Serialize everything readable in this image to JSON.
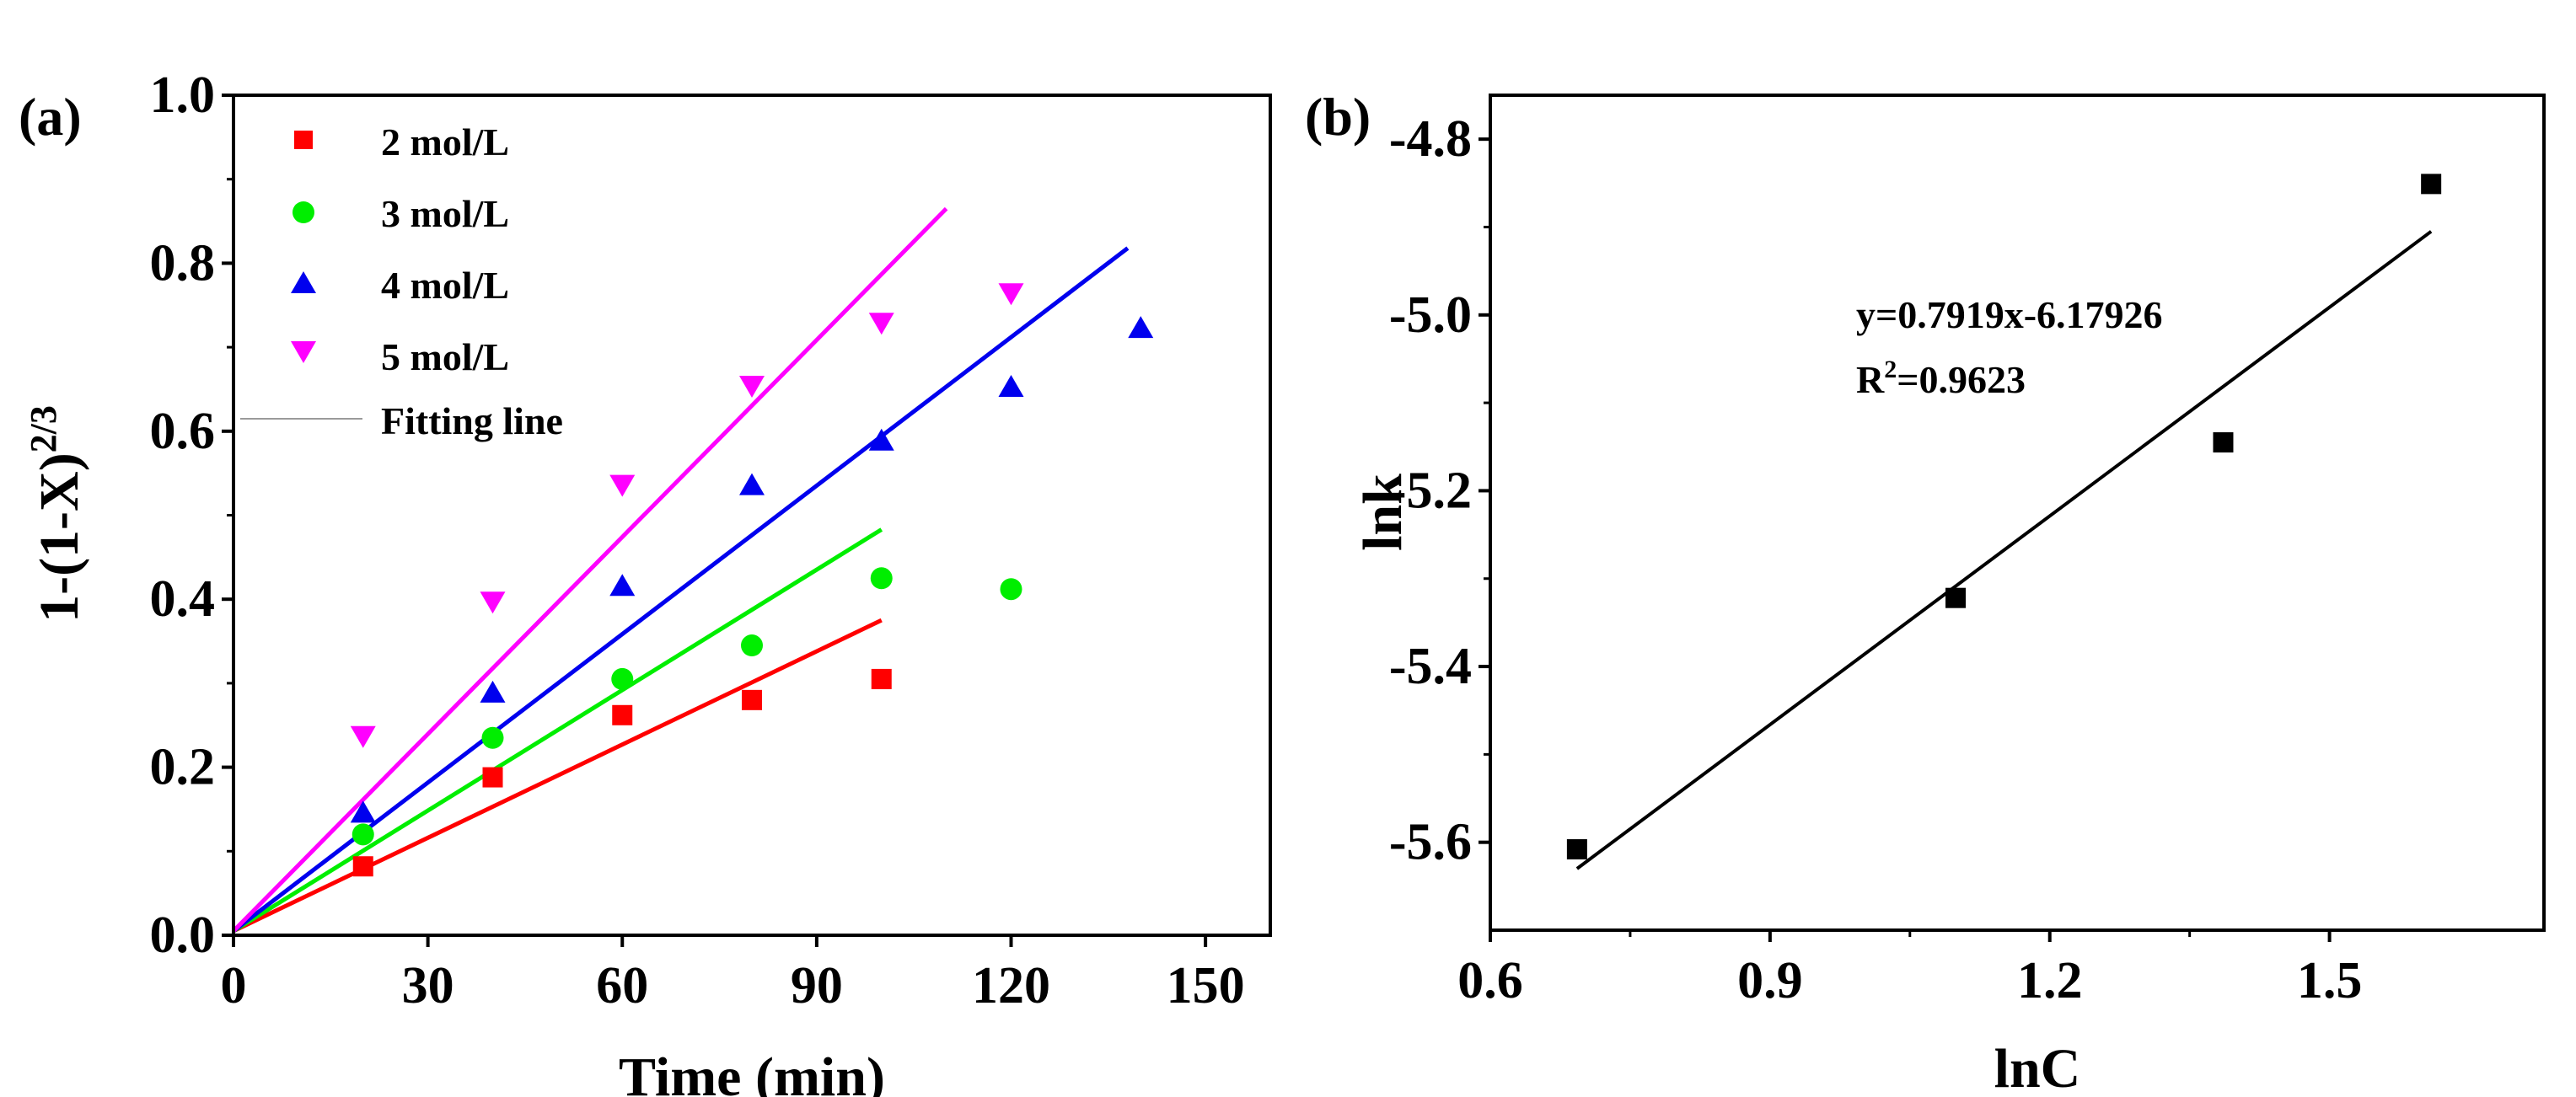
{
  "chart_data": [
    {
      "type": "scatter",
      "panel_label": "(a)",
      "xlabel": "Time (min)",
      "ylabel": "1-(1-X)",
      "ylabel_superscript": "2/3",
      "xlim": [
        0,
        160
      ],
      "ylim": [
        0,
        1.0
      ],
      "xticks": [
        0,
        30,
        60,
        90,
        120,
        150
      ],
      "yticks": [
        0.0,
        0.2,
        0.4,
        0.6,
        0.8,
        1.0
      ],
      "ytick_labels": [
        "0.0",
        "0.2",
        "0.4",
        "0.6",
        "0.8",
        "1.0"
      ],
      "legend_position": "top-left",
      "fit_legend_label": "Fitting line",
      "series": [
        {
          "name": "2 mol/L",
          "marker": "square",
          "color": "#ff0000",
          "x": [
            20,
            40,
            60,
            80,
            100
          ],
          "y": [
            0.082,
            0.188,
            0.262,
            0.28,
            0.305
          ],
          "fit": {
            "x": [
              0,
              100
            ],
            "y": [
              0.005,
              0.375
            ]
          }
        },
        {
          "name": "3 mol/L",
          "marker": "circle",
          "color": "#00ee00",
          "x": [
            20,
            40,
            60,
            80,
            100,
            120
          ],
          "y": [
            0.12,
            0.235,
            0.305,
            0.345,
            0.425,
            0.412
          ],
          "fit": {
            "x": [
              0,
              100
            ],
            "y": [
              0.005,
              0.483
            ]
          }
        },
        {
          "name": "4 mol/L",
          "marker": "triangle-up",
          "color": "#0000ee",
          "x": [
            20,
            40,
            60,
            80,
            100,
            120,
            140
          ],
          "y": [
            0.145,
            0.288,
            0.415,
            0.535,
            0.588,
            0.652,
            0.722
          ],
          "fit": {
            "x": [
              0,
              138
            ],
            "y": [
              0.005,
              0.818
            ]
          }
        },
        {
          "name": "5 mol/L",
          "marker": "triangle-down",
          "color": "#ff00ff",
          "x": [
            20,
            40,
            60,
            80,
            100,
            120
          ],
          "y": [
            0.238,
            0.398,
            0.537,
            0.655,
            0.73,
            0.765
          ],
          "fit": {
            "x": [
              0,
              110
            ],
            "y": [
              0.005,
              0.865
            ]
          }
        }
      ]
    },
    {
      "type": "scatter",
      "panel_label": "(b)",
      "xlabel": "lnC",
      "ylabel": "lnk",
      "xlim": [
        0.6,
        1.73
      ],
      "ylim": [
        -5.7,
        -4.75
      ],
      "xticks": [
        0.6,
        0.9,
        1.2,
        1.5
      ],
      "xtick_labels": [
        "0.6",
        "0.9",
        "1.2",
        "1.5"
      ],
      "yticks": [
        -4.8,
        -5.0,
        -5.2,
        -5.4,
        -5.6
      ],
      "ytick_labels": [
        "-4.8",
        "-5.0",
        "-5.2",
        "-5.4",
        "-5.6"
      ],
      "annotation_equation": "y=0.7919x-6.17926",
      "annotation_r2_prefix": "R",
      "annotation_r2_superscript": "2",
      "annotation_r2_value": "=0.9623",
      "series": [
        {
          "name": "lnk",
          "marker": "square",
          "color": "#000000",
          "x": [
            0.693,
            1.099,
            1.386,
            1.609
          ],
          "y": [
            -5.608,
            -5.322,
            -5.145,
            -4.851
          ],
          "fit": {
            "x": [
              0.693,
              1.609
            ],
            "y": [
              -5.63,
              -4.905
            ]
          }
        }
      ]
    }
  ]
}
